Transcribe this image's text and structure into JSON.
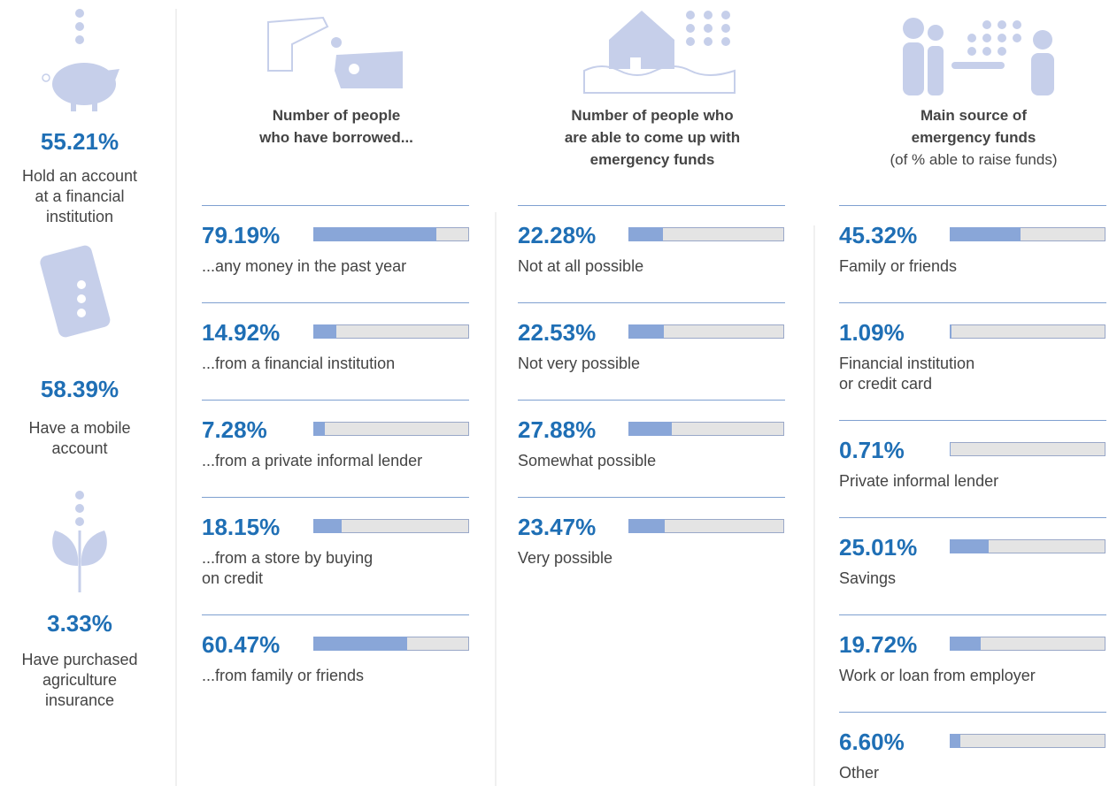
{
  "chart_data": [
    {
      "type": "stat",
      "categories": [
        "Hold an account\nat a financial\ninstitution",
        "Have a mobile\naccount",
        "Have purchased\nagriculture\ninsurance"
      ],
      "values": [
        55.21,
        58.39,
        3.33
      ],
      "value_labels": [
        "55.21%",
        "58.39%",
        "3.33%"
      ]
    },
    {
      "type": "bar",
      "title": "Number of people\nwho have borrowed...",
      "categories": [
        "...any money in the past year",
        "...from a financial institution",
        "...from a private informal lender",
        "...from a store by buying\non credit",
        "...from family or friends"
      ],
      "values": [
        79.19,
        14.92,
        7.28,
        18.15,
        60.47
      ],
      "value_labels": [
        "79.19%",
        "14.92%",
        "7.28%",
        "18.15%",
        "60.47%"
      ],
      "xlim": [
        0,
        100
      ]
    },
    {
      "type": "bar",
      "title": "Number of people who\nare able to come up with\nemergency funds",
      "categories": [
        "Not at all possible",
        "Not very possible",
        "Somewhat possible",
        "Very possible"
      ],
      "values": [
        22.28,
        22.53,
        27.88,
        23.47
      ],
      "value_labels": [
        "22.28%",
        "22.53%",
        "27.88%",
        "23.47%"
      ],
      "xlim": [
        0,
        100
      ]
    },
    {
      "type": "bar",
      "title": "Main source of\nemergency funds",
      "subtitle": "(of % able to raise funds)",
      "categories": [
        "Family or friends",
        "Financial institution\nor credit card",
        "Private informal lender",
        "Savings",
        "Work or loan from employer",
        "Other"
      ],
      "values": [
        45.32,
        1.09,
        0.71,
        25.01,
        19.72,
        6.6
      ],
      "value_labels": [
        "45.32%",
        "1.09%",
        "0.71%",
        "25.01%",
        "19.72%",
        "6.60%"
      ],
      "xlim": [
        0,
        100
      ]
    }
  ]
}
